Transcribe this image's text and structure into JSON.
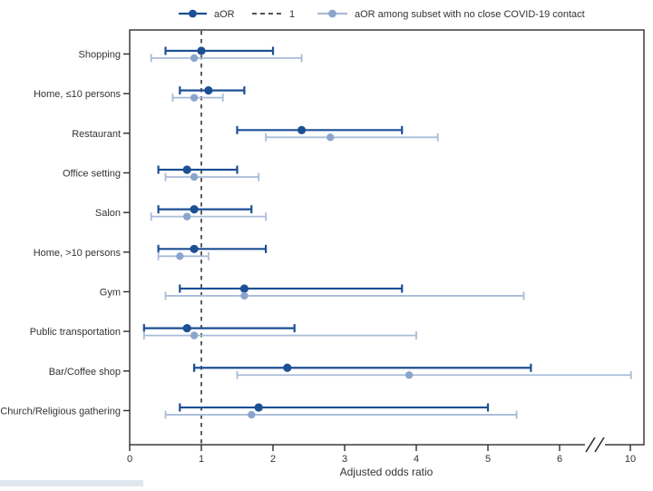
{
  "chart_data": {
    "type": "scatter",
    "variant": "forest-plot",
    "title": "",
    "xlabel": "Adjusted odds ratio",
    "x_ticks": [
      0,
      1,
      2,
      3,
      4,
      5,
      6,
      10
    ],
    "axis_break": {
      "between": [
        6,
        10
      ]
    },
    "reference_line_x": 1,
    "grid": false,
    "legend": {
      "position": "top",
      "items": [
        {
          "label": "aOR",
          "type": "line-dot",
          "color": "#1d4f94",
          "dot_color": "#1d4f94"
        },
        {
          "label": "1",
          "type": "dashed-line",
          "color": "#1a1a1a"
        },
        {
          "label": "aOR among subset with no close COVID-19 contact",
          "type": "line-dot",
          "color": "#a8bcd9",
          "dot_color": "#8aa5cd"
        }
      ]
    },
    "categories": [
      "Shopping",
      "Home, ≤10 persons",
      "Restaurant",
      "Office setting",
      "Salon",
      "Home, >10 persons",
      "Gym",
      "Public transportation",
      "Bar/Coffee shop",
      "Church/Religious gathering"
    ],
    "series": [
      {
        "name": "aOR",
        "color": "#1d4f94",
        "dot_color": "#1d4f94",
        "points": [
          {
            "est": 1.0,
            "lo": 0.5,
            "hi": 2.0
          },
          {
            "est": 1.1,
            "lo": 0.7,
            "hi": 1.6
          },
          {
            "est": 2.4,
            "lo": 1.5,
            "hi": 3.8
          },
          {
            "est": 0.8,
            "lo": 0.4,
            "hi": 1.5
          },
          {
            "est": 0.9,
            "lo": 0.4,
            "hi": 1.7
          },
          {
            "est": 0.9,
            "lo": 0.4,
            "hi": 1.9
          },
          {
            "est": 1.6,
            "lo": 0.7,
            "hi": 3.8
          },
          {
            "est": 0.8,
            "lo": 0.2,
            "hi": 2.3
          },
          {
            "est": 2.2,
            "lo": 0.9,
            "hi": 5.6
          },
          {
            "est": 1.8,
            "lo": 0.7,
            "hi": 5.0
          }
        ]
      },
      {
        "name": "aOR among subset with no close COVID-19 contact",
        "color": "#a8bcd9",
        "dot_color": "#8aa5cd",
        "points": [
          {
            "est": 0.9,
            "lo": 0.3,
            "hi": 2.4
          },
          {
            "est": 0.9,
            "lo": 0.6,
            "hi": 1.3
          },
          {
            "est": 2.8,
            "lo": 1.9,
            "hi": 4.3
          },
          {
            "est": 0.9,
            "lo": 0.5,
            "hi": 1.8
          },
          {
            "est": 0.8,
            "lo": 0.3,
            "hi": 1.9
          },
          {
            "est": 0.7,
            "lo": 0.4,
            "hi": 1.1
          },
          {
            "est": 1.6,
            "lo": 0.5,
            "hi": 5.5
          },
          {
            "est": 0.9,
            "lo": 0.2,
            "hi": 4.0
          },
          {
            "est": 3.9,
            "lo": 1.5,
            "hi": 10.1
          },
          {
            "est": 1.7,
            "lo": 0.5,
            "hi": 5.4
          }
        ]
      }
    ],
    "colors": {
      "frame": "#2d2d2d",
      "text": "#333333",
      "reference_line": "#1a1a1a"
    }
  }
}
